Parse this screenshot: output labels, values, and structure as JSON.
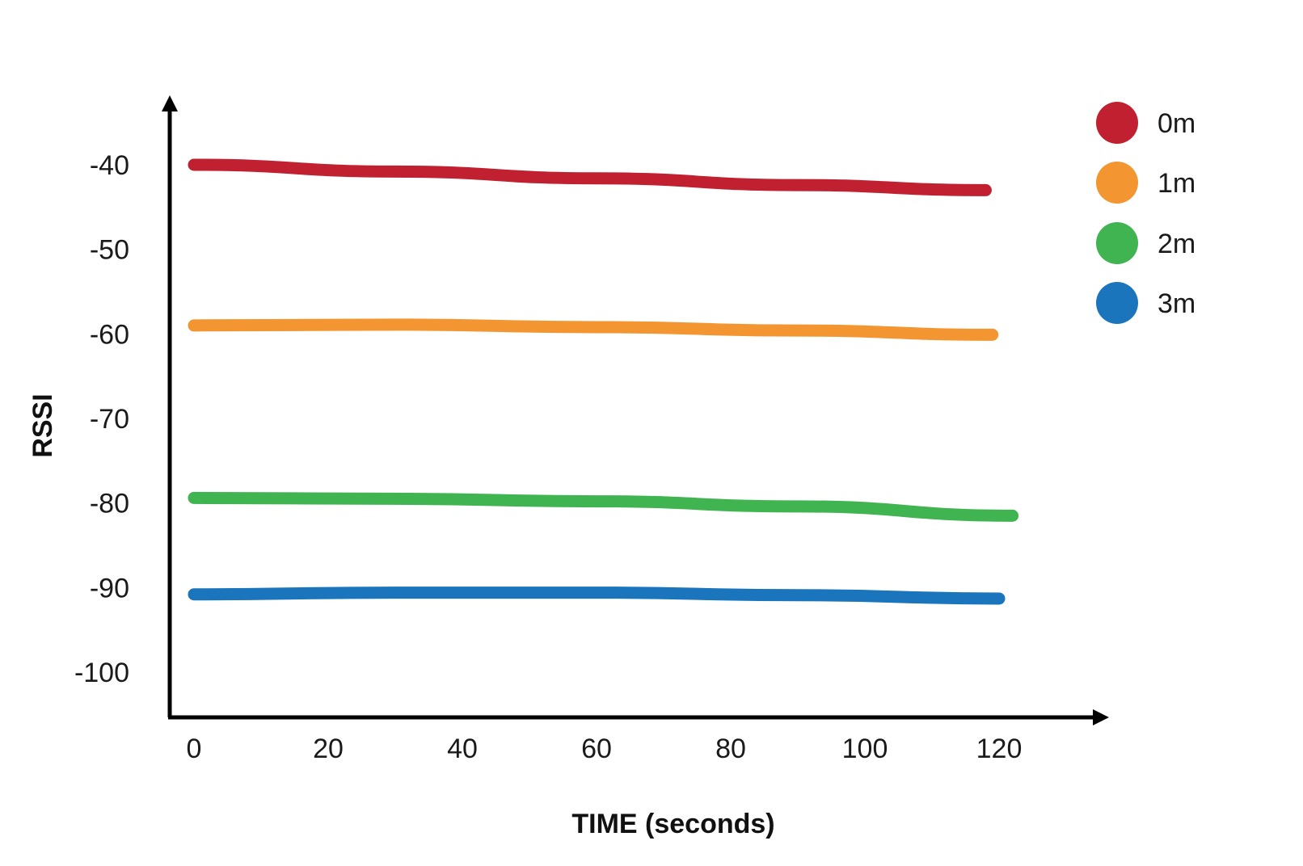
{
  "chart_data": {
    "type": "line",
    "title": "",
    "xlabel": "TIME (seconds)",
    "ylabel": "RSSI",
    "x_ticks": [
      0,
      20,
      40,
      60,
      80,
      100,
      120
    ],
    "x_tick_labels": [
      "0",
      "20",
      "40",
      "60",
      "80",
      "100",
      "120"
    ],
    "y_ticks": [
      -40,
      -50,
      -60,
      -70,
      -80,
      -90,
      -100
    ],
    "y_tick_labels": [
      "-40",
      "-50",
      "-60",
      "-70",
      "-80",
      "-90",
      "-100"
    ],
    "xlim": [
      0,
      120
    ],
    "ylim": [
      -105,
      -33
    ],
    "grid": false,
    "legend_position": "top-right",
    "series": [
      {
        "name": "0m",
        "color": "#c0202f",
        "x": [
          0,
          30,
          60,
          90,
          118
        ],
        "y": [
          -40,
          -40.8,
          -41.6,
          -42.4,
          -43
        ]
      },
      {
        "name": "1m",
        "color": "#f39530",
        "x": [
          0,
          30,
          60,
          90,
          119
        ],
        "y": [
          -59,
          -58.9,
          -59.2,
          -59.6,
          -60.1
        ]
      },
      {
        "name": "2m",
        "color": "#40b450",
        "x": [
          0,
          30,
          60,
          90,
          122
        ],
        "y": [
          -79.4,
          -79.5,
          -79.8,
          -80.4,
          -81.5
        ]
      },
      {
        "name": "3m",
        "color": "#1a75bc",
        "x": [
          0,
          30,
          60,
          90,
          120
        ],
        "y": [
          -90.8,
          -90.6,
          -90.6,
          -90.9,
          -91.3
        ]
      }
    ]
  }
}
